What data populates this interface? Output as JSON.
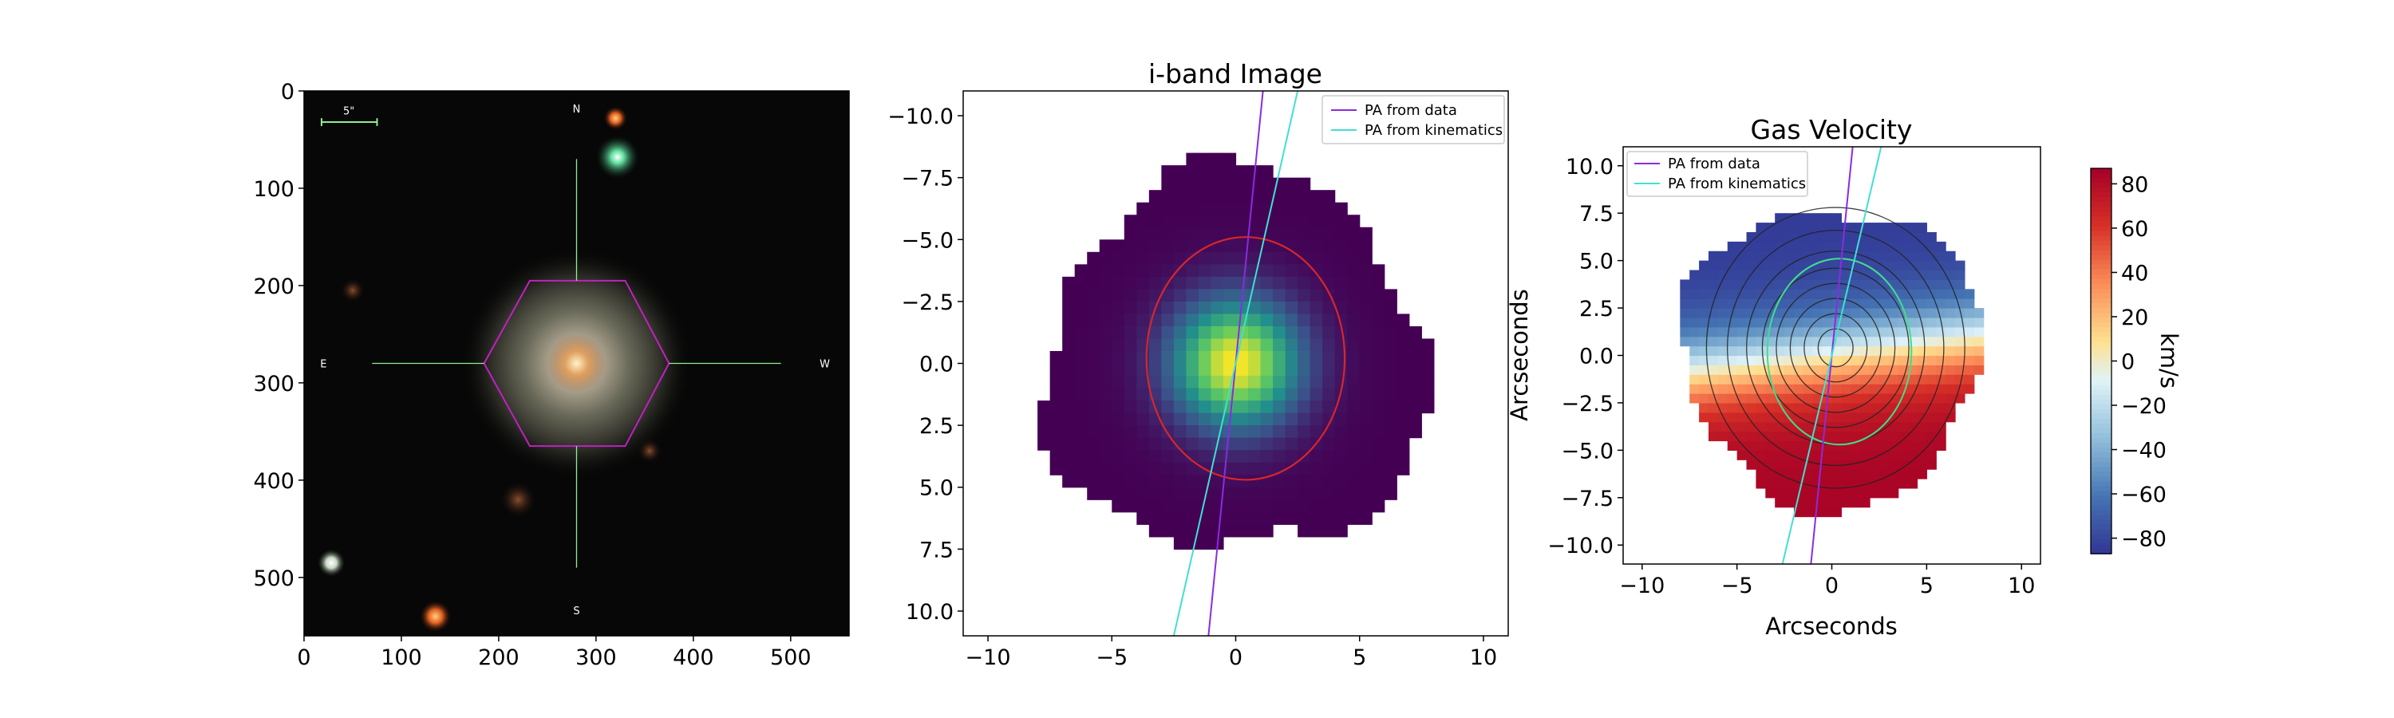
{
  "colors": {
    "pa_data": "#8a2be2",
    "pa_kinematics": "#40e0d0",
    "ellipse_red": "#d62728",
    "ellipse_green": "#3fe08a",
    "hexagon": "#c020c0",
    "crosshair": "#90ee90",
    "contour": "#222222"
  },
  "chart_data": [
    {
      "type": "image",
      "xlim": [
        0,
        560
      ],
      "ylim": [
        560,
        0
      ],
      "x_ticks": [
        "0",
        "100",
        "200",
        "300",
        "400",
        "500"
      ],
      "y_ticks": [
        "0",
        "100",
        "200",
        "300",
        "400",
        "500"
      ],
      "x_tick_values": [
        0,
        100,
        200,
        300,
        400,
        500
      ],
      "y_tick_values": [
        0,
        100,
        200,
        300,
        400,
        500
      ],
      "compass": {
        "north": "N",
        "south": "S",
        "east": "E",
        "west": "W"
      },
      "scale_bar_label": "5\"",
      "galaxy_center": [
        280,
        280
      ],
      "hexagon_vertices": [
        [
          185,
          280
        ],
        [
          232,
          195
        ],
        [
          330,
          195
        ],
        [
          375,
          280
        ],
        [
          330,
          365
        ],
        [
          232,
          365
        ]
      ],
      "crosshair": {
        "x": [
          70,
          490
        ],
        "y": [
          70,
          490
        ]
      }
    },
    {
      "type": "heatmap",
      "title": "i-band Image",
      "xlim": [
        -11,
        11
      ],
      "ylim": [
        11,
        -11
      ],
      "x_ticks": [
        "−10",
        "−5",
        "0",
        "5",
        "10"
      ],
      "x_tick_values": [
        -10,
        -5,
        0,
        5,
        10
      ],
      "y_ticks": [
        "−10.0",
        "−7.5",
        "−5.0",
        "−2.5",
        "0.0",
        "2.5",
        "5.0",
        "7.5",
        "10.0"
      ],
      "y_tick_values": [
        -10,
        -7.5,
        -5,
        -2.5,
        0,
        2.5,
        5,
        7.5,
        10
      ],
      "colormap": "viridis",
      "legend": {
        "position": "upper right",
        "entries": [
          "PA from data",
          "PA from kinematics"
        ]
      },
      "pa_lines": {
        "data": [
          [
            -1.1,
            11
          ],
          [
            1.1,
            -11
          ]
        ],
        "kinematics": [
          [
            -2.5,
            11
          ],
          [
            2.5,
            -11
          ]
        ]
      },
      "ellipse": {
        "center": [
          0.4,
          -0.2
        ],
        "semi_x": 4.0,
        "semi_y": 4.9
      }
    },
    {
      "type": "heatmap",
      "title": "Gas Velocity",
      "xlabel": "Arcseconds",
      "ylabel": "Arcseconds",
      "xlim": [
        -11,
        11
      ],
      "ylim": [
        -11,
        11
      ],
      "x_ticks": [
        "−10",
        "−5",
        "0",
        "5",
        "10"
      ],
      "x_tick_values": [
        -10,
        -5,
        0,
        5,
        10
      ],
      "y_ticks": [
        "10.0",
        "7.5",
        "5.0",
        "2.5",
        "0.0",
        "−2.5",
        "−5.0",
        "−7.5",
        "−10.0"
      ],
      "y_tick_values": [
        10,
        7.5,
        5,
        2.5,
        0,
        -2.5,
        -5,
        -7.5,
        -10
      ],
      "colormap": "RdYlBu (reversed)",
      "legend": {
        "position": "upper left",
        "entries": [
          "PA from data",
          "PA from kinematics"
        ]
      },
      "pa_lines": {
        "data": [
          [
            -1.1,
            -11
          ],
          [
            1.1,
            11
          ]
        ],
        "kinematics": [
          [
            -2.6,
            -11
          ],
          [
            2.6,
            11
          ]
        ]
      },
      "colorbar": {
        "label": "km/s",
        "range": [
          -87,
          87
        ],
        "ticks": [
          "80",
          "60",
          "40",
          "20",
          "0",
          "−20",
          "−40",
          "−60",
          "−80"
        ],
        "tick_values": [
          80,
          60,
          40,
          20,
          0,
          -20,
          -40,
          -60,
          -80
        ]
      }
    }
  ]
}
